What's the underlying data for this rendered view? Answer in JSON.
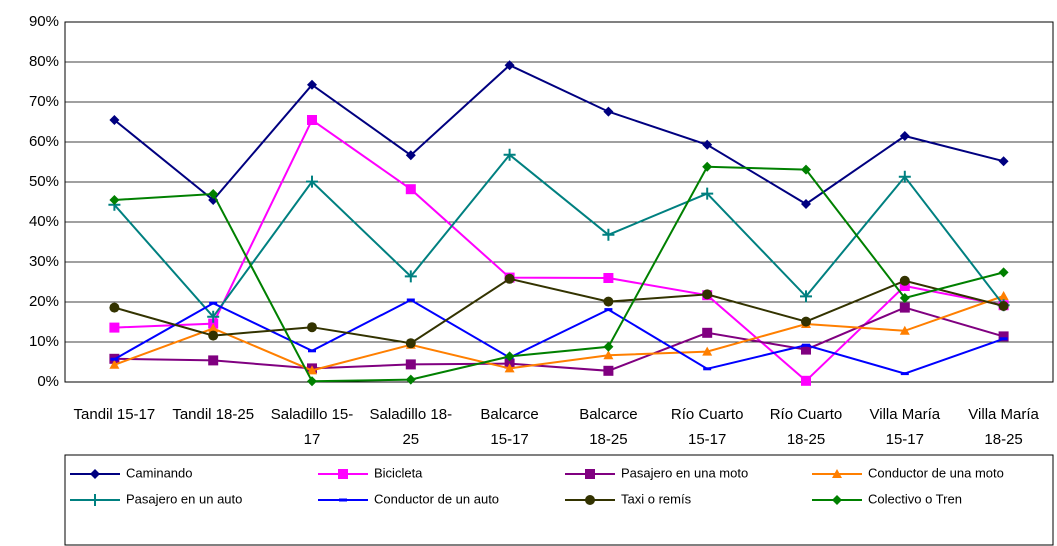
{
  "chart_data": {
    "type": "line",
    "categories": [
      "Tandil 15-17",
      "Tandil 18-25",
      "Saladillo 15-17",
      "Saladillo 18-25",
      "Balcarce 15-17",
      "Balcarce 18-25",
      "Río Cuarto 15-17",
      "Río Cuarto 18-25",
      "Villa María 15-17",
      "Villa María 18-25"
    ],
    "series": [
      {
        "name": "Caminando",
        "color": "#000080",
        "marker": "diamond",
        "values": [
          65.5,
          45.5,
          74.3,
          56.7,
          79.2,
          67.6,
          59.3,
          44.5,
          61.5,
          55.2
        ]
      },
      {
        "name": "Bicicleta",
        "color": "#ff00ff",
        "marker": "square",
        "values": [
          13.6,
          14.6,
          65.5,
          48.2,
          26.1,
          26,
          21.7,
          0.3,
          24,
          19.2
        ]
      },
      {
        "name": "Pasajero en una moto",
        "color": "#800080",
        "marker": "square",
        "values": [
          5.8,
          5.4,
          3.4,
          4.4,
          4.6,
          2.8,
          12.3,
          8.1,
          18.6,
          11.4
        ]
      },
      {
        "name": "Conductor de una moto",
        "color": "#ff7f00",
        "marker": "triangle",
        "values": [
          4.3,
          13.4,
          2.9,
          9.3,
          3.4,
          6.7,
          7.6,
          14.5,
          12.8,
          21.5
        ]
      },
      {
        "name": "Pasajero en un auto",
        "color": "#008080",
        "marker": "plus",
        "values": [
          44.3,
          16.3,
          50.1,
          26.4,
          56.8,
          36.8,
          47.1,
          21.4,
          51.3,
          19.2
        ]
      },
      {
        "name": "Conductor de un auto",
        "color": "#0000ff",
        "marker": "dash",
        "values": [
          5.7,
          19.7,
          7.8,
          20.5,
          6.1,
          18.1,
          3.3,
          9.2,
          2.1,
          10.8
        ]
      },
      {
        "name": "Taxi o remís",
        "color": "#333300",
        "marker": "circle",
        "values": [
          18.6,
          11.6,
          13.7,
          9.7,
          25.8,
          20.1,
          21.9,
          15.1,
          25.3,
          19
        ]
      },
      {
        "name": "Colectivo o Tren",
        "color": "#008000",
        "marker": "diamond",
        "values": [
          45.5,
          47,
          0.2,
          0.6,
          6.4,
          8.8,
          53.8,
          53.1,
          21,
          27.4
        ]
      }
    ],
    "ylim": [
      0,
      90
    ],
    "yticks": [
      {
        "value": 0,
        "label": "0%"
      },
      {
        "value": 10,
        "label": "10%"
      },
      {
        "value": 20,
        "label": "20%"
      },
      {
        "value": 30,
        "label": "30%"
      },
      {
        "value": 40,
        "label": "40%"
      },
      {
        "value": 50,
        "label": "50%"
      },
      {
        "value": 60,
        "label": "60%"
      },
      {
        "value": 70,
        "label": "70%"
      },
      {
        "value": 80,
        "label": "80%"
      },
      {
        "value": 90,
        "label": "90%"
      }
    ],
    "grid": true,
    "legend": "bottom"
  }
}
